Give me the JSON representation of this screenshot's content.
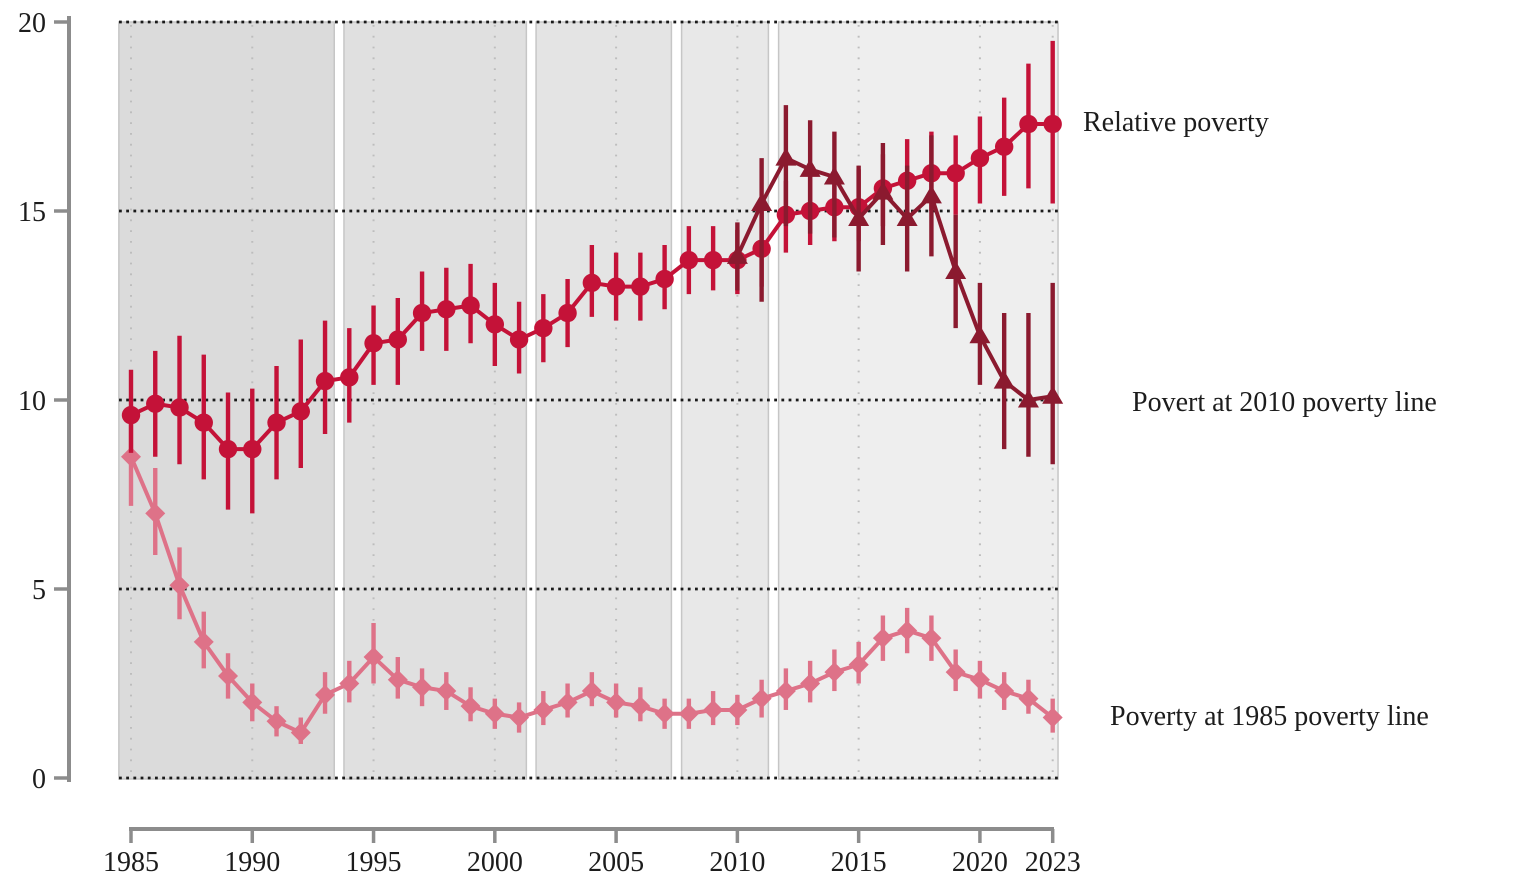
{
  "labels": {
    "relative": "Relative poverty",
    "at2010": "Povert at 2010 poverty line",
    "at1985": "Poverty at 1985 poverty line"
  },
  "colors": {
    "background": "#ffffff",
    "axis": "#8c8c8c",
    "tick_text": "#1c1c1c",
    "grid_dark_dotted": "#1a1a1a",
    "grid_light_dotted": "#bdbdbd",
    "band_stroke": "#c6c6c6",
    "series_relative": "#C41238",
    "series_2010_line": "#8B1A2F",
    "series_1985_line": "#DE7288"
  },
  "chart_data": {
    "type": "line",
    "title": "",
    "xlabel": "",
    "ylabel": "",
    "ylim": [
      0,
      20
    ],
    "xlim": [
      1984.5,
      2023.3
    ],
    "yticks": [
      0,
      5,
      10,
      15,
      20
    ],
    "xticks": [
      1985,
      1990,
      1995,
      2000,
      2005,
      2010,
      2015,
      2020,
      2023
    ],
    "grid": {
      "horizontal": "black dotted lines at each y tick",
      "vertical": "light gray dotted lines at each x tick inside shaded bands"
    },
    "legend_position": "labels in right margin",
    "bands": [
      {
        "from": 1984.5,
        "to": 1993.38,
        "fill": "#dbdbdb"
      },
      {
        "from": 1993.78,
        "to": 2001.3,
        "fill": "#e0e0e0"
      },
      {
        "from": 2001.7,
        "to": 2007.28,
        "fill": "#e4e4e4"
      },
      {
        "from": 2007.7,
        "to": 2011.28,
        "fill": "#e8e8e8"
      },
      {
        "from": 2011.7,
        "to": 2023.22,
        "fill": "#eeeeee"
      }
    ],
    "series": [
      {
        "name": "Poverty at 1985 poverty line",
        "marker": "diamond",
        "color": "#DE7288",
        "x": [
          1985,
          1986,
          1987,
          1988,
          1989,
          1990,
          1991,
          1992,
          1993,
          1994,
          1995,
          1996,
          1997,
          1998,
          1999,
          2000,
          2001,
          2002,
          2003,
          2004,
          2005,
          2006,
          2007,
          2008,
          2009,
          2010,
          2011,
          2012,
          2013,
          2014,
          2015,
          2016,
          2017,
          2018,
          2019,
          2020,
          2021,
          2022,
          2023
        ],
        "y": [
          8.5,
          7.0,
          5.1,
          3.6,
          2.7,
          2.0,
          1.5,
          1.2,
          2.2,
          2.5,
          3.2,
          2.6,
          2.4,
          2.3,
          1.9,
          1.7,
          1.6,
          1.8,
          2.0,
          2.3,
          2.0,
          1.9,
          1.7,
          1.7,
          1.8,
          1.8,
          2.1,
          2.3,
          2.5,
          2.8,
          3.0,
          3.7,
          3.9,
          3.7,
          2.8,
          2.6,
          2.3,
          2.1,
          1.6
        ],
        "lo": [
          7.2,
          5.9,
          4.2,
          2.9,
          2.1,
          1.5,
          1.1,
          0.9,
          1.7,
          2.0,
          2.5,
          2.1,
          1.9,
          1.8,
          1.5,
          1.3,
          1.2,
          1.4,
          1.6,
          1.9,
          1.6,
          1.5,
          1.3,
          1.3,
          1.4,
          1.4,
          1.6,
          1.8,
          2.0,
          2.3,
          2.5,
          3.1,
          3.3,
          3.1,
          2.3,
          2.1,
          1.8,
          1.7,
          1.2
        ],
        "hi": [
          9.8,
          8.2,
          6.1,
          4.4,
          3.3,
          2.5,
          1.9,
          1.6,
          2.8,
          3.1,
          4.1,
          3.2,
          2.9,
          2.8,
          2.4,
          2.1,
          2.0,
          2.3,
          2.5,
          2.8,
          2.5,
          2.4,
          2.1,
          2.1,
          2.3,
          2.2,
          2.6,
          2.9,
          3.1,
          3.4,
          3.6,
          4.3,
          4.5,
          4.3,
          3.4,
          3.1,
          2.8,
          2.6,
          2.1
        ]
      },
      {
        "name": "Relative poverty",
        "marker": "circle",
        "color": "#C41238",
        "x": [
          1985,
          1986,
          1987,
          1988,
          1989,
          1990,
          1991,
          1992,
          1993,
          1994,
          1995,
          1996,
          1997,
          1998,
          1999,
          2000,
          2001,
          2002,
          2003,
          2004,
          2005,
          2006,
          2007,
          2008,
          2009,
          2010,
          2011,
          2012,
          2013,
          2014,
          2015,
          2016,
          2017,
          2018,
          2019,
          2020,
          2021,
          2022,
          2023
        ],
        "y": [
          9.6,
          9.9,
          9.8,
          9.4,
          8.7,
          8.7,
          9.4,
          9.7,
          10.5,
          10.6,
          11.5,
          11.6,
          12.3,
          12.4,
          12.5,
          12.0,
          11.6,
          11.9,
          12.3,
          13.1,
          13.0,
          13.0,
          13.2,
          13.7,
          13.7,
          13.7,
          14.0,
          14.9,
          15.0,
          15.1,
          15.1,
          15.6,
          15.8,
          16.0,
          16.0,
          16.4,
          16.7,
          17.3,
          17.3
        ],
        "lo": [
          8.6,
          8.5,
          8.3,
          7.9,
          7.1,
          7.0,
          7.9,
          8.2,
          9.1,
          9.4,
          10.4,
          10.4,
          11.3,
          11.3,
          11.5,
          10.9,
          10.7,
          11.0,
          11.4,
          12.2,
          12.1,
          12.1,
          12.4,
          12.8,
          12.9,
          12.8,
          13.0,
          13.9,
          14.1,
          14.2,
          14.2,
          14.6,
          14.8,
          15.0,
          14.9,
          15.2,
          15.4,
          15.6,
          15.2
        ],
        "hi": [
          10.8,
          11.3,
          11.7,
          11.2,
          10.2,
          10.3,
          10.9,
          11.6,
          12.1,
          11.9,
          12.5,
          12.7,
          13.4,
          13.5,
          13.6,
          13.1,
          12.6,
          12.8,
          13.2,
          14.1,
          13.9,
          13.9,
          14.1,
          14.6,
          14.6,
          14.5,
          15.0,
          15.8,
          16.0,
          16.1,
          16.1,
          16.5,
          16.9,
          17.1,
          17.0,
          17.5,
          18.0,
          18.9,
          19.5
        ]
      },
      {
        "name": "Povert at 2010 poverty line",
        "marker": "triangle",
        "color": "#8B1A2F",
        "x": [
          2010,
          2011,
          2012,
          2013,
          2014,
          2015,
          2016,
          2017,
          2018,
          2019,
          2020,
          2021,
          2022,
          2023
        ],
        "y": [
          13.8,
          15.2,
          16.4,
          16.1,
          15.9,
          14.8,
          15.5,
          14.8,
          15.4,
          13.4,
          11.7,
          10.5,
          10.0,
          10.1
        ],
        "lo": [
          12.9,
          12.6,
          14.6,
          14.4,
          14.3,
          13.4,
          14.1,
          13.4,
          13.8,
          11.9,
          10.4,
          8.7,
          8.5,
          8.3
        ],
        "hi": [
          14.7,
          16.4,
          17.8,
          17.4,
          17.1,
          16.2,
          16.8,
          16.2,
          17.0,
          14.9,
          13.1,
          12.3,
          12.3,
          13.1
        ]
      }
    ]
  }
}
